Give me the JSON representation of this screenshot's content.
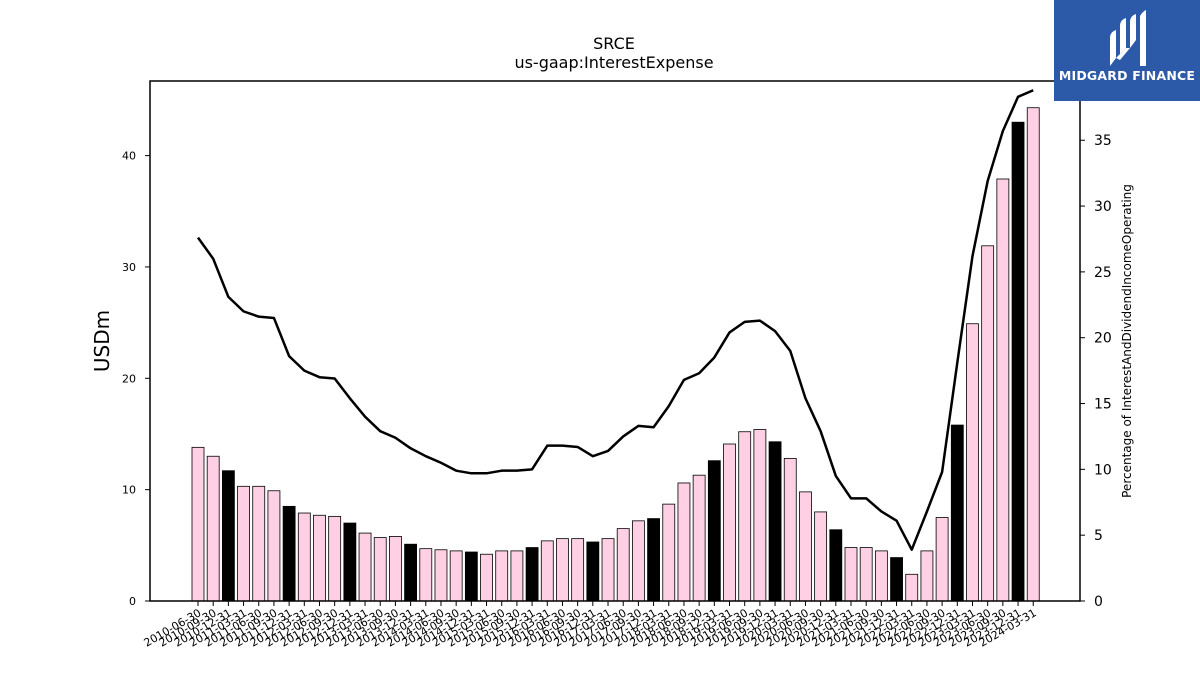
{
  "chart_data": {
    "type": "bar+line",
    "title": "SRCE",
    "subtitle": "us-gaap:InterestExpense",
    "ylabel": "USDm",
    "y2label": "Percentage of InterestAndDividendIncomeOperating",
    "ylim": [
      0,
      46.7
    ],
    "y2lim": [
      0,
      39.5
    ],
    "yticks": [
      0,
      10,
      20,
      30,
      40
    ],
    "y2ticks": [
      0,
      5,
      10,
      15,
      20,
      25,
      30,
      35
    ],
    "categories": [
      "2010-06-30",
      "2010-09-30",
      "2010-12-31",
      "2011-03-31",
      "2011-06-30",
      "2011-09-30",
      "2011-12-31",
      "2012-03-31",
      "2012-06-30",
      "2012-09-30",
      "2012-12-31",
      "2013-03-31",
      "2013-06-30",
      "2013-09-30",
      "2013-12-31",
      "2014-03-31",
      "2014-06-30",
      "2014-09-30",
      "2014-12-31",
      "2015-03-31",
      "2015-06-30",
      "2015-09-30",
      "2015-12-31",
      "2016-03-31",
      "2016-06-30",
      "2016-09-30",
      "2016-12-31",
      "2017-03-31",
      "2017-06-30",
      "2017-09-30",
      "2017-12-31",
      "2018-03-31",
      "2018-06-30",
      "2018-09-30",
      "2018-12-31",
      "2019-03-31",
      "2019-06-30",
      "2019-09-30",
      "2019-12-31",
      "2020-03-31",
      "2020-06-30",
      "2020-09-30",
      "2020-12-31",
      "2021-03-31",
      "2021-06-30",
      "2021-09-30",
      "2021-12-31",
      "2022-03-31",
      "2022-06-30",
      "2022-09-30",
      "2022-12-31",
      "2023-03-31",
      "2023-06-30",
      "2023-09-30",
      "2023-12-31",
      "2024-03-31"
    ],
    "series": [
      {
        "kind": "bar",
        "values": [
          13.8,
          13.0,
          11.7,
          10.3,
          10.3,
          9.9,
          8.5,
          7.9,
          7.7,
          7.6,
          7.0,
          6.1,
          5.7,
          5.8,
          5.1,
          4.7,
          4.6,
          4.5,
          4.4,
          4.2,
          4.5,
          4.5,
          4.8,
          5.4,
          5.6,
          5.6,
          5.3,
          5.6,
          6.5,
          7.2,
          7.4,
          8.7,
          10.6,
          11.3,
          12.6,
          14.1,
          15.2,
          15.4,
          14.3,
          12.8,
          9.8,
          8.0,
          6.4,
          4.8,
          4.8,
          4.5,
          3.9,
          2.4,
          4.5,
          7.5,
          15.8,
          24.9,
          31.9,
          37.9,
          43.0,
          44.3
        ],
        "highlight": [
          false,
          false,
          true,
          false,
          false,
          false,
          true,
          false,
          false,
          false,
          true,
          false,
          false,
          false,
          true,
          false,
          false,
          false,
          true,
          false,
          false,
          false,
          true,
          false,
          false,
          false,
          true,
          false,
          false,
          false,
          true,
          false,
          false,
          false,
          true,
          false,
          false,
          false,
          true,
          false,
          false,
          false,
          true,
          false,
          false,
          false,
          true,
          false,
          false,
          false,
          true,
          false,
          false,
          false,
          true,
          false
        ]
      },
      {
        "kind": "line",
        "axis": "right",
        "values": [
          27.6,
          26.0,
          23.1,
          22.0,
          21.6,
          21.5,
          18.6,
          17.5,
          17.0,
          16.9,
          15.4,
          14.0,
          12.9,
          12.4,
          11.6,
          11.0,
          10.5,
          9.9,
          9.7,
          9.7,
          9.9,
          9.9,
          10.0,
          11.8,
          11.8,
          11.7,
          11.0,
          11.4,
          12.5,
          13.3,
          13.2,
          14.8,
          16.8,
          17.3,
          18.5,
          20.4,
          21.2,
          21.3,
          20.5,
          19.0,
          15.4,
          12.9,
          9.5,
          7.8,
          7.8,
          6.8,
          6.1,
          3.9,
          6.8,
          9.8,
          18.1,
          26.2,
          31.9,
          35.7,
          38.3,
          38.8
        ]
      }
    ],
    "colors": {
      "bar": "#ffd0e4",
      "bar_highlight": "#000000",
      "bar_edge": "#000000",
      "line": "#000000"
    }
  },
  "brand": {
    "name": "MIDGARD FINANCE",
    "color": "#2d5aa8"
  }
}
